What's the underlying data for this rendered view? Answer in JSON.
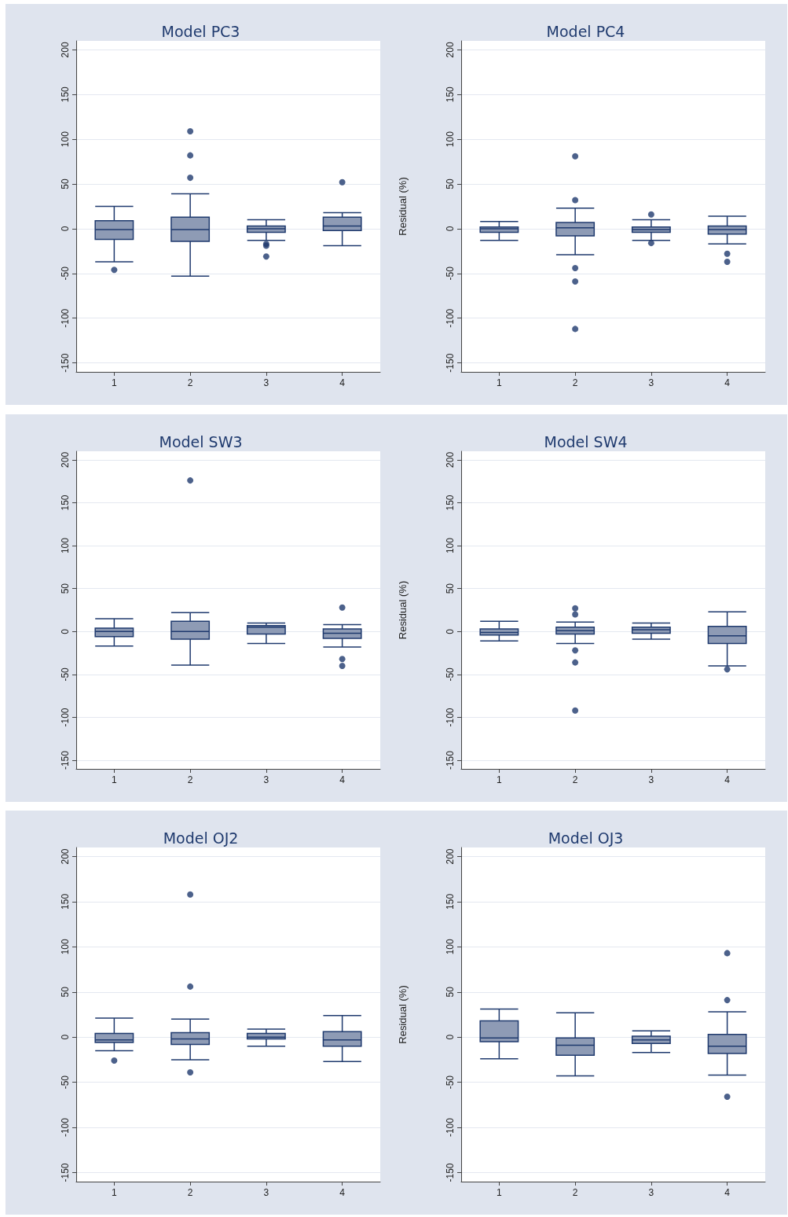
{
  "chart_data": [
    {
      "type": "box",
      "title": "Model PC3",
      "categories": [
        "1",
        "2",
        "3",
        "4"
      ],
      "ylim": [
        -160,
        210
      ],
      "yticks": [
        -150,
        -100,
        -50,
        0,
        50,
        100,
        150,
        200
      ],
      "grid": "y",
      "series": [
        {
          "color": "#8e9bb5",
          "boxes": [
            {
              "low": -37,
              "q1": -12,
              "median": -1,
              "q3": 9,
              "high": 25,
              "outliers": [
                -46
              ]
            },
            {
              "low": -53,
              "q1": -14,
              "median": -1,
              "q3": 13,
              "high": 39,
              "outliers": [
                109,
                82,
                57
              ]
            },
            {
              "low": -13,
              "q1": -4,
              "median": 0,
              "q3": 3,
              "high": 10,
              "outliers": [
                -17,
                -19,
                -31
              ]
            },
            {
              "low": -19,
              "q1": -2,
              "median": 3,
              "q3": 13,
              "high": 18,
              "outliers": [
                52
              ]
            }
          ]
        }
      ]
    },
    {
      "type": "box",
      "title": "Model PC4",
      "ylabel": "Residual (%)",
      "categories": [
        "1",
        "2",
        "3",
        "4"
      ],
      "ylim": [
        -160,
        210
      ],
      "yticks": [
        -150,
        -100,
        -50,
        0,
        50,
        100,
        150,
        200
      ],
      "grid": "y",
      "series": [
        {
          "color": "#8e9bb5",
          "boxes": [
            {
              "low": -13,
              "q1": -4,
              "median": 0,
              "q3": 2,
              "high": 8
            },
            {
              "low": -29,
              "q1": -8,
              "median": 1,
              "q3": 7,
              "high": 23,
              "outliers": [
                81,
                32,
                -44,
                -59,
                -112
              ]
            },
            {
              "low": -13,
              "q1": -4,
              "median": -1,
              "q3": 2,
              "high": 10,
              "outliers": [
                16,
                -16
              ]
            },
            {
              "low": -17,
              "q1": -6,
              "median": -1,
              "q3": 3,
              "high": 14,
              "outliers": [
                -28,
                -37
              ]
            }
          ]
        }
      ]
    },
    {
      "type": "box",
      "title": "Model SW3",
      "categories": [
        "1",
        "2",
        "3",
        "4"
      ],
      "ylim": [
        -160,
        210
      ],
      "yticks": [
        -150,
        -100,
        -50,
        0,
        50,
        100,
        150,
        200
      ],
      "grid": "y",
      "series": [
        {
          "color": "#8e9bb5",
          "boxes": [
            {
              "low": -17,
              "q1": -6,
              "median": 0,
              "q3": 4,
              "high": 15
            },
            {
              "low": -39,
              "q1": -9,
              "median": 0,
              "q3": 12,
              "high": 22,
              "outliers": [
                176
              ]
            },
            {
              "low": -14,
              "q1": -3,
              "median": 5,
              "q3": 7,
              "high": 10
            },
            {
              "low": -18,
              "q1": -8,
              "median": -2,
              "q3": 3,
              "high": 8,
              "outliers": [
                28,
                -32,
                -40
              ]
            }
          ]
        }
      ]
    },
    {
      "type": "box",
      "title": "Model SW4",
      "ylabel": "Residual (%)",
      "categories": [
        "1",
        "2",
        "3",
        "4"
      ],
      "ylim": [
        -160,
        210
      ],
      "yticks": [
        -150,
        -100,
        -50,
        0,
        50,
        100,
        150,
        200
      ],
      "grid": "y",
      "series": [
        {
          "color": "#8e9bb5",
          "boxes": [
            {
              "low": -11,
              "q1": -4,
              "median": -1,
              "q3": 3,
              "high": 12
            },
            {
              "low": -14,
              "q1": -3,
              "median": 1,
              "q3": 5,
              "high": 11,
              "outliers": [
                27,
                20,
                -22,
                -36,
                -92
              ]
            },
            {
              "low": -9,
              "q1": -2,
              "median": 2,
              "q3": 5,
              "high": 10
            },
            {
              "low": -40,
              "q1": -14,
              "median": -5,
              "q3": 6,
              "high": 23,
              "outliers": [
                -44
              ]
            }
          ]
        }
      ]
    },
    {
      "type": "box",
      "title": "Model OJ2",
      "categories": [
        "1",
        "2",
        "3",
        "4"
      ],
      "ylim": [
        -160,
        210
      ],
      "yticks": [
        -150,
        -100,
        -50,
        0,
        50,
        100,
        150,
        200
      ],
      "grid": "y",
      "series": [
        {
          "color": "#8e9bb5",
          "boxes": [
            {
              "low": -15,
              "q1": -6,
              "median": -3,
              "q3": 4,
              "high": 21,
              "outliers": [
                -26
              ]
            },
            {
              "low": -25,
              "q1": -8,
              "median": -2,
              "q3": 5,
              "high": 20,
              "outliers": [
                158,
                56,
                -39
              ]
            },
            {
              "low": -10,
              "q1": -2,
              "median": 0,
              "q3": 4,
              "high": 9
            },
            {
              "low": -27,
              "q1": -10,
              "median": -3,
              "q3": 6,
              "high": 24
            }
          ]
        }
      ]
    },
    {
      "type": "box",
      "title": "Model OJ3",
      "ylabel": "Residual (%)",
      "categories": [
        "1",
        "2",
        "3",
        "4"
      ],
      "ylim": [
        -160,
        210
      ],
      "yticks": [
        -150,
        -100,
        -50,
        0,
        50,
        100,
        150,
        200
      ],
      "grid": "y",
      "series": [
        {
          "color": "#8e9bb5",
          "boxes": [
            {
              "low": -24,
              "q1": -5,
              "median": -1,
              "q3": 18,
              "high": 31
            },
            {
              "low": -43,
              "q1": -20,
              "median": -9,
              "q3": -1,
              "high": 27
            },
            {
              "low": -17,
              "q1": -7,
              "median": -3,
              "q3": 1,
              "high": 7
            },
            {
              "low": -42,
              "q1": -18,
              "median": -10,
              "q3": 3,
              "high": 28,
              "outliers": [
                93,
                41,
                -66
              ]
            }
          ]
        }
      ]
    }
  ]
}
